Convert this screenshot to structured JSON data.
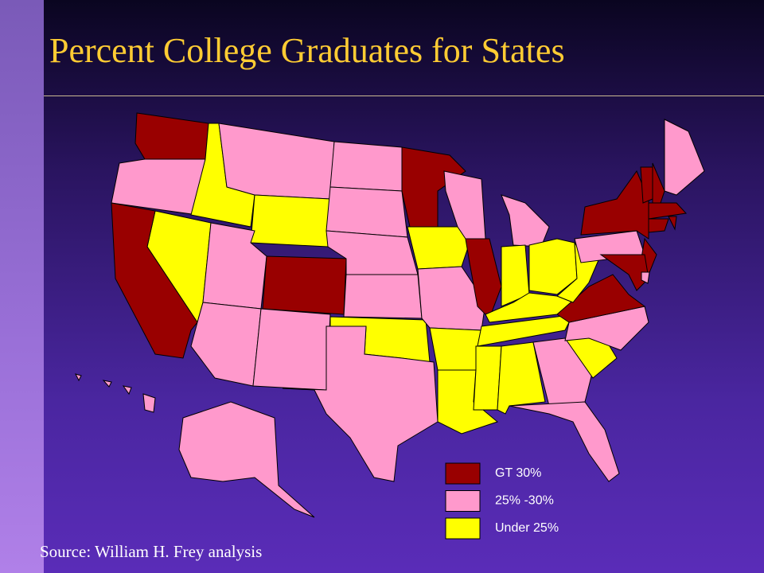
{
  "title": "Percent College Graduates for States",
  "legend": [
    {
      "label": "GT 30%",
      "color": "#990000"
    },
    {
      "label": "25% -30%",
      "color": "#ff99cc"
    },
    {
      "label": "Under 25%",
      "color": "#ffff00"
    }
  ],
  "source": "Source: William H. Frey analysis"
}
